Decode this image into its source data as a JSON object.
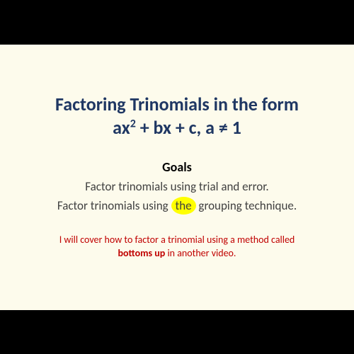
{
  "title": {
    "line1": "Factoring Trinomials in the form",
    "line2_pre": "ax",
    "line2_sup": "2",
    "line2_post": " + bx + c, a ≠ 1"
  },
  "goals": {
    "heading": "Goals",
    "goal1": "Factor trinomials using trial and error.",
    "goal2_pre": "Factor trinomials using ",
    "goal2_highlight": "the",
    "goal2_post": " grouping technique."
  },
  "note": {
    "line1": "I will cover how to factor a trinomial using a method called",
    "line2_bold": "bottoms up",
    "line2_post": " in another video."
  },
  "colors": {
    "background": "#000000",
    "slide_bg": "#fdfbec",
    "title_color": "#1f3763",
    "goals_heading_color": "#000000",
    "body_color": "#414141",
    "note_color": "#c00000",
    "highlight_bg": "#ffff00"
  }
}
